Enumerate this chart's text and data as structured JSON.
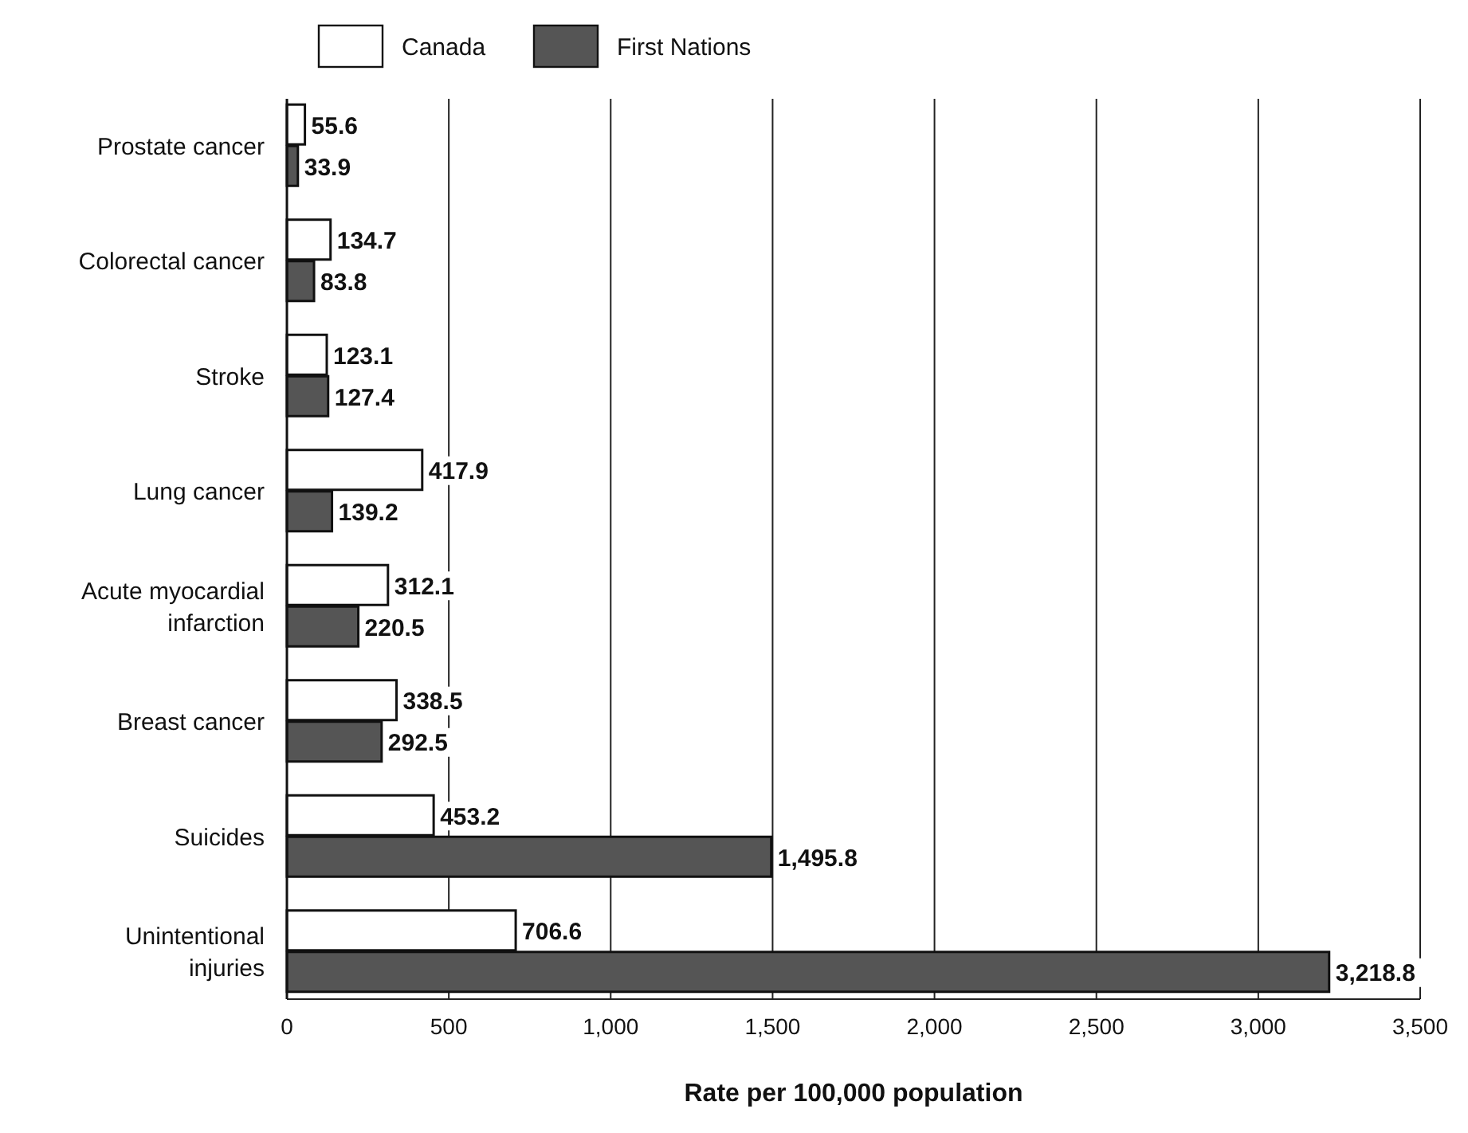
{
  "chart_data": {
    "type": "bar",
    "orientation": "horizontal",
    "xlabel": "Rate per 100,000 population",
    "categories": [
      "Prostate cancer",
      "Colorectal cancer",
      "Stroke",
      "Lung cancer",
      "Acute myocardial infarction",
      "Breast cancer",
      "Suicides",
      "Unintentional injuries"
    ],
    "series": [
      {
        "name": "Canada",
        "color": "#ffffff",
        "values": [
          55.6,
          134.7,
          123.1,
          417.9,
          312.1,
          338.5,
          453.2,
          706.6
        ],
        "value_labels": [
          "55.6",
          "134.7",
          "123.1",
          "417.9",
          "312.1",
          "338.5",
          "453.2",
          "706.6"
        ]
      },
      {
        "name": "First Nations",
        "color": "#555555",
        "values": [
          33.9,
          83.8,
          127.4,
          139.2,
          220.5,
          292.5,
          1495.8,
          3218.8
        ],
        "value_labels": [
          "33.9",
          "83.8",
          "127.4",
          "139.2",
          "220.5",
          "292.5",
          "1,495.8",
          "3,218.8"
        ]
      }
    ],
    "xlim": [
      0,
      3500
    ],
    "xticks": [
      0,
      {
        "value": 500,
        "label": "500"
      },
      {
        "value": 1000,
        "label": "1,000"
      },
      {
        "value": 1500,
        "label": "1,500"
      },
      {
        "value": 2000,
        "label": "2,000"
      },
      {
        "value": 2500,
        "label": "2,500"
      },
      {
        "value": 3000,
        "label": "3,000"
      },
      {
        "value": 3500,
        "label": "3,500"
      }
    ],
    "grid": "x",
    "legend": "top left"
  }
}
